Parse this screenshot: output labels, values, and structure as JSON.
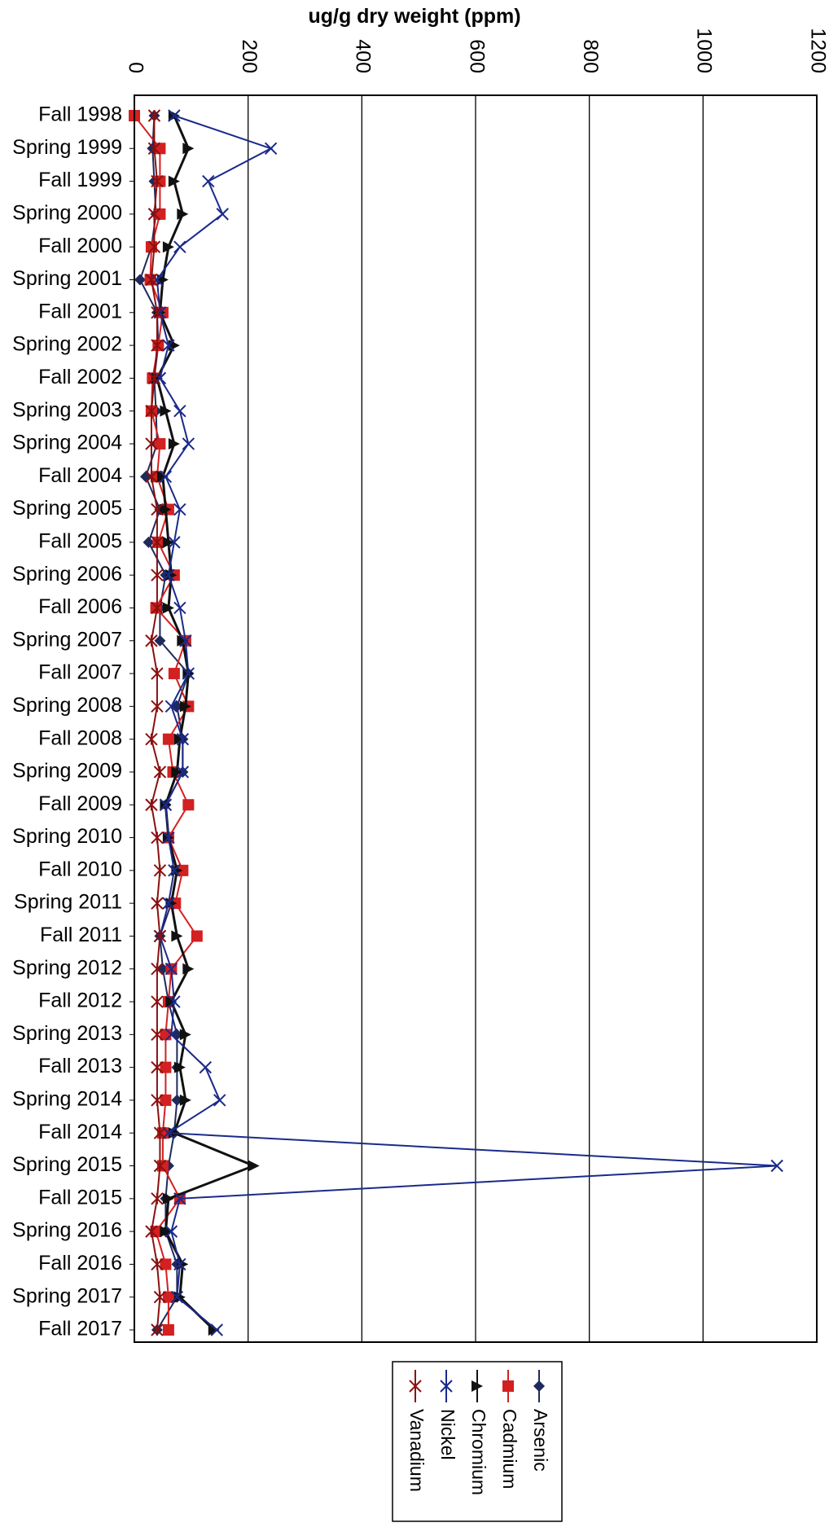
{
  "chart_data": {
    "type": "line",
    "orientation": "horizontal",
    "title": "",
    "xlabel": "ug/g dry weight (ppm)",
    "ylabel": "",
    "xlim": [
      0,
      1200
    ],
    "xticks": [
      0,
      200,
      400,
      600,
      800,
      1000,
      1200
    ],
    "grid": "vertical",
    "legend_position": "bottom",
    "categories": [
      "Fall 1998",
      "Spring 1999",
      "Fall 1999",
      "Spring 2000",
      "Fall 2000",
      "Spring 2001",
      "Fall 2001",
      "Spring 2002",
      "Fall 2002",
      "Spring 2003",
      "Spring 2004",
      "Fall 2004",
      "Spring 2005",
      "Fall 2005",
      "Spring 2006",
      "Fall 2006",
      "Spring 2007",
      "Fall 2007",
      "Spring 2008",
      "Fall 2008",
      "Spring 2009",
      "Fall 2009",
      "Spring 2010",
      "Fall 2010",
      "Spring 2011",
      "Fall 2011",
      "Spring 2012",
      "Fall 2012",
      "Spring 2013",
      "Fall 2013",
      "Spring 2014",
      "Fall 2014",
      "Spring 2015",
      "Fall 2015",
      "Spring 2016",
      "Fall 2016",
      "Spring 2017",
      "Fall 2017"
    ],
    "series": [
      {
        "name": "Arsenic",
        "color": "#1f2a5c",
        "marker": "diamond",
        "values": [
          35,
          32,
          35,
          38,
          30,
          10,
          40,
          42,
          35,
          38,
          40,
          20,
          45,
          25,
          55,
          45,
          45,
          95,
          75,
          85,
          85,
          55,
          60,
          75,
          65,
          45,
          50,
          60,
          75,
          75,
          75,
          70,
          60,
          55,
          55,
          75,
          75,
          40
        ]
      },
      {
        "name": "Cadmium",
        "color": "#d32020",
        "marker": "square",
        "values": [
          0,
          45,
          45,
          45,
          30,
          28,
          50,
          42,
          32,
          30,
          45,
          40,
          60,
          42,
          70,
          38,
          90,
          70,
          95,
          60,
          68,
          95,
          60,
          85,
          72,
          110,
          65,
          60,
          55,
          55,
          55,
          50,
          50,
          80,
          38,
          55,
          60,
          60
        ]
      },
      {
        "name": "Chromium",
        "color": "#111111",
        "marker": "triangle",
        "values": [
          70,
          95,
          70,
          85,
          60,
          50,
          45,
          70,
          40,
          55,
          70,
          50,
          55,
          60,
          65,
          60,
          85,
          95,
          90,
          80,
          75,
          55,
          60,
          75,
          65,
          75,
          95,
          65,
          90,
          80,
          90,
          70,
          210,
          60,
          55,
          85,
          80,
          140
        ]
      },
      {
        "name": "Nickel",
        "color": "#1a2a8a",
        "marker": "x",
        "values": [
          70,
          240,
          130,
          155,
          80,
          40,
          45,
          60,
          45,
          80,
          95,
          55,
          80,
          70,
          60,
          80,
          90,
          95,
          65,
          85,
          85,
          55,
          60,
          70,
          60,
          45,
          65,
          70,
          65,
          125,
          150,
          60,
          1130,
          80,
          65,
          80,
          75,
          145
        ]
      },
      {
        "name": "Vanadium",
        "color": "#8a1010",
        "marker": "asterisk",
        "values": [
          35,
          35,
          40,
          35,
          35,
          30,
          40,
          40,
          35,
          30,
          30,
          30,
          40,
          40,
          40,
          40,
          30,
          40,
          40,
          30,
          45,
          30,
          40,
          45,
          40,
          45,
          40,
          40,
          40,
          40,
          40,
          45,
          45,
          40,
          30,
          40,
          45,
          40
        ]
      }
    ]
  }
}
